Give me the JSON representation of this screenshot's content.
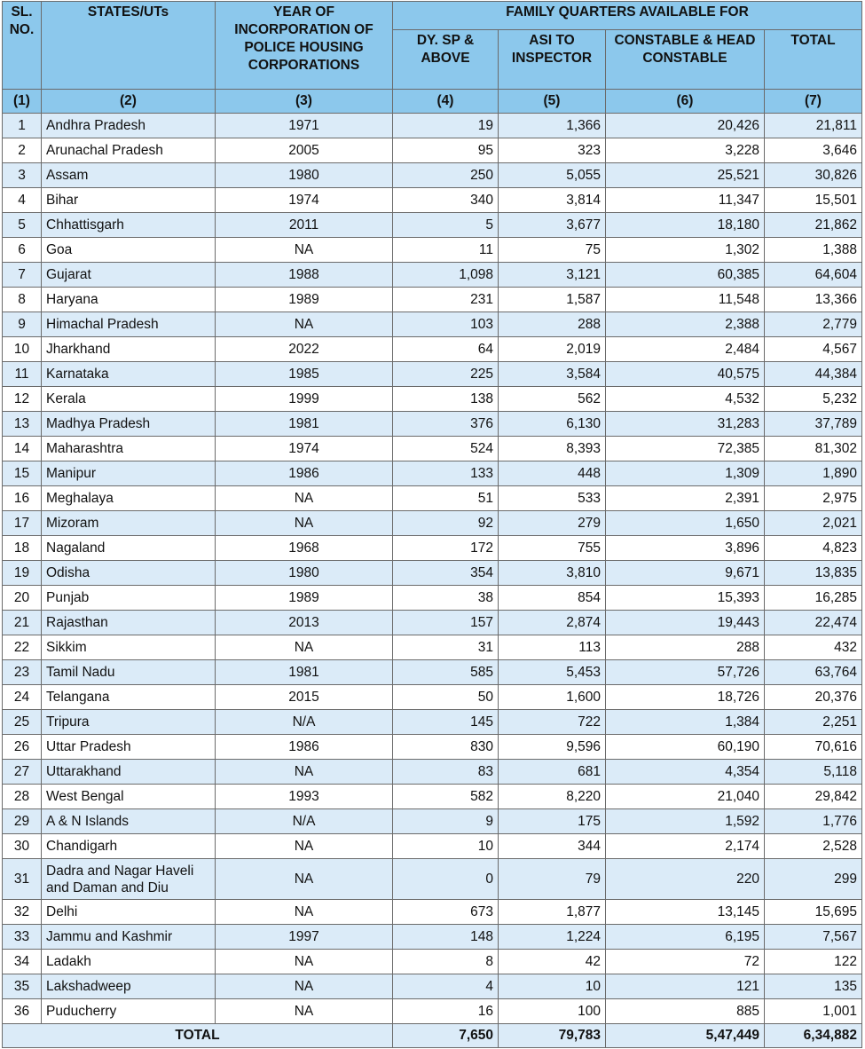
{
  "table": {
    "headers": {
      "sl_no": "SL. NO.",
      "states": "STATES/UTs",
      "year": "YEAR OF INCORPORATION OF POLICE HOUSING CORPORATIONS",
      "family_quarters": "FAMILY QUARTERS AVAILABLE FOR",
      "dysp": "DY. SP & ABOVE",
      "asi": "ASI TO INSPECTOR",
      "constable": "CONSTABLE & HEAD CONSTABLE",
      "total": "TOTAL"
    },
    "column_numbers": [
      "(1)",
      "(2)",
      "(3)",
      "(4)",
      "(5)",
      "(6)",
      "(7)"
    ],
    "rows": [
      {
        "sl": "1",
        "state": "Andhra Pradesh",
        "year": "1971",
        "dysp": "19",
        "asi": "1,366",
        "constable": "20,426",
        "total": "21,811"
      },
      {
        "sl": "2",
        "state": "Arunachal Pradesh",
        "year": "2005",
        "dysp": "95",
        "asi": "323",
        "constable": "3,228",
        "total": "3,646"
      },
      {
        "sl": "3",
        "state": "Assam",
        "year": "1980",
        "dysp": "250",
        "asi": "5,055",
        "constable": "25,521",
        "total": "30,826"
      },
      {
        "sl": "4",
        "state": "Bihar",
        "year": "1974",
        "dysp": "340",
        "asi": "3,814",
        "constable": "11,347",
        "total": "15,501"
      },
      {
        "sl": "5",
        "state": "Chhattisgarh",
        "year": "2011",
        "dysp": "5",
        "asi": "3,677",
        "constable": "18,180",
        "total": "21,862"
      },
      {
        "sl": "6",
        "state": "Goa",
        "year": "NA",
        "dysp": "11",
        "asi": "75",
        "constable": "1,302",
        "total": "1,388"
      },
      {
        "sl": "7",
        "state": "Gujarat",
        "year": "1988",
        "dysp": "1,098",
        "asi": "3,121",
        "constable": "60,385",
        "total": "64,604"
      },
      {
        "sl": "8",
        "state": "Haryana",
        "year": "1989",
        "dysp": "231",
        "asi": "1,587",
        "constable": "11,548",
        "total": "13,366"
      },
      {
        "sl": "9",
        "state": "Himachal Pradesh",
        "year": "NA",
        "dysp": "103",
        "asi": "288",
        "constable": "2,388",
        "total": "2,779"
      },
      {
        "sl": "10",
        "state": "Jharkhand",
        "year": "2022",
        "dysp": "64",
        "asi": "2,019",
        "constable": "2,484",
        "total": "4,567"
      },
      {
        "sl": "11",
        "state": "Karnataka",
        "year": "1985",
        "dysp": "225",
        "asi": "3,584",
        "constable": "40,575",
        "total": "44,384"
      },
      {
        "sl": "12",
        "state": "Kerala",
        "year": "1999",
        "dysp": "138",
        "asi": "562",
        "constable": "4,532",
        "total": "5,232"
      },
      {
        "sl": "13",
        "state": "Madhya Pradesh",
        "year": "1981",
        "dysp": "376",
        "asi": "6,130",
        "constable": "31,283",
        "total": "37,789"
      },
      {
        "sl": "14",
        "state": "Maharashtra",
        "year": "1974",
        "dysp": "524",
        "asi": "8,393",
        "constable": "72,385",
        "total": "81,302"
      },
      {
        "sl": "15",
        "state": "Manipur",
        "year": "1986",
        "dysp": "133",
        "asi": "448",
        "constable": "1,309",
        "total": "1,890"
      },
      {
        "sl": "16",
        "state": "Meghalaya",
        "year": "NA",
        "dysp": "51",
        "asi": "533",
        "constable": "2,391",
        "total": "2,975"
      },
      {
        "sl": "17",
        "state": "Mizoram",
        "year": "NA",
        "dysp": "92",
        "asi": "279",
        "constable": "1,650",
        "total": "2,021"
      },
      {
        "sl": "18",
        "state": "Nagaland",
        "year": "1968",
        "dysp": "172",
        "asi": "755",
        "constable": "3,896",
        "total": "4,823"
      },
      {
        "sl": "19",
        "state": "Odisha",
        "year": "1980",
        "dysp": "354",
        "asi": "3,810",
        "constable": "9,671",
        "total": "13,835"
      },
      {
        "sl": "20",
        "state": "Punjab",
        "year": "1989",
        "dysp": "38",
        "asi": "854",
        "constable": "15,393",
        "total": "16,285"
      },
      {
        "sl": "21",
        "state": "Rajasthan",
        "year": "2013",
        "dysp": "157",
        "asi": "2,874",
        "constable": "19,443",
        "total": "22,474"
      },
      {
        "sl": "22",
        "state": "Sikkim",
        "year": "NA",
        "dysp": "31",
        "asi": "113",
        "constable": "288",
        "total": "432"
      },
      {
        "sl": "23",
        "state": "Tamil Nadu",
        "year": "1981",
        "dysp": "585",
        "asi": "5,453",
        "constable": "57,726",
        "total": "63,764"
      },
      {
        "sl": "24",
        "state": "Telangana",
        "year": "2015",
        "dysp": "50",
        "asi": "1,600",
        "constable": "18,726",
        "total": "20,376"
      },
      {
        "sl": "25",
        "state": "Tripura",
        "year": "N/A",
        "dysp": "145",
        "asi": "722",
        "constable": "1,384",
        "total": "2,251"
      },
      {
        "sl": "26",
        "state": "Uttar Pradesh",
        "year": "1986",
        "dysp": "830",
        "asi": "9,596",
        "constable": "60,190",
        "total": "70,616"
      },
      {
        "sl": "27",
        "state": "Uttarakhand",
        "year": "NA",
        "dysp": "83",
        "asi": "681",
        "constable": "4,354",
        "total": "5,118"
      },
      {
        "sl": "28",
        "state": "West Bengal",
        "year": "1993",
        "dysp": "582",
        "asi": "8,220",
        "constable": "21,040",
        "total": "29,842"
      },
      {
        "sl": "29",
        "state": "A & N Islands",
        "year": "N/A",
        "dysp": "9",
        "asi": "175",
        "constable": "1,592",
        "total": "1,776"
      },
      {
        "sl": "30",
        "state": "Chandigarh",
        "year": "NA",
        "dysp": "10",
        "asi": "344",
        "constable": "2,174",
        "total": "2,528"
      },
      {
        "sl": "31",
        "state": "Dadra and Nagar Haveli and Daman and Diu",
        "year": "NA",
        "dysp": "0",
        "asi": "79",
        "constable": "220",
        "total": "299"
      },
      {
        "sl": "32",
        "state": "Delhi",
        "year": "NA",
        "dysp": "673",
        "asi": "1,877",
        "constable": "13,145",
        "total": "15,695"
      },
      {
        "sl": "33",
        "state": "Jammu and Kashmir",
        "year": "1997",
        "dysp": "148",
        "asi": "1,224",
        "constable": "6,195",
        "total": "7,567"
      },
      {
        "sl": "34",
        "state": "Ladakh",
        "year": "NA",
        "dysp": "8",
        "asi": "42",
        "constable": "72",
        "total": "122"
      },
      {
        "sl": "35",
        "state": "Lakshadweep",
        "year": "NA",
        "dysp": "4",
        "asi": "10",
        "constable": "121",
        "total": "135"
      },
      {
        "sl": "36",
        "state": "Puducherry",
        "year": "NA",
        "dysp": "16",
        "asi": "100",
        "constable": "885",
        "total": "1,001"
      }
    ],
    "totals": {
      "label": "TOTAL",
      "dysp": "7,650",
      "asi": "79,783",
      "constable": "5,47,449",
      "total": "6,34,882"
    }
  },
  "colors": {
    "header_bg": "#8cc8ec",
    "row_alt_bg": "#dbebf8",
    "border": "#6b6b6b"
  }
}
